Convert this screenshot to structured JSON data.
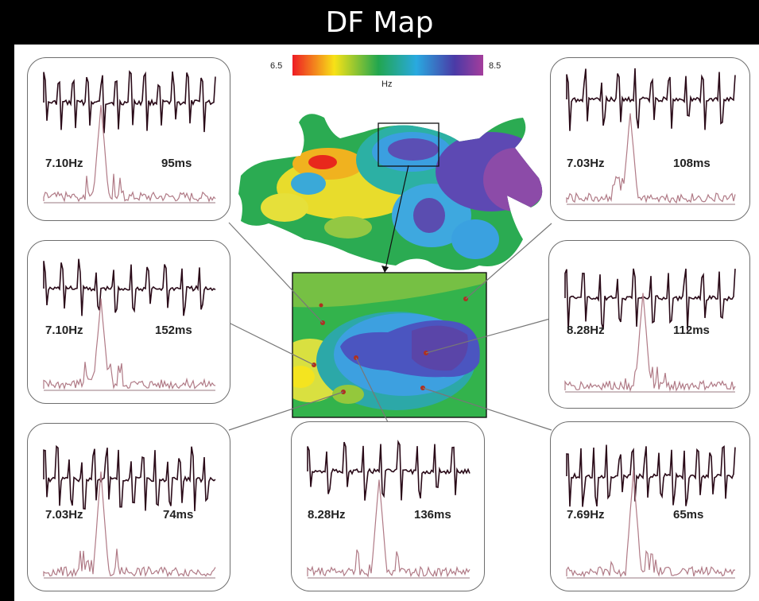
{
  "header": {
    "title": "DF Map"
  },
  "colorbar": {
    "min_label": "6.5",
    "max_label": "8.5",
    "unit": "Hz"
  },
  "cards": [
    {
      "id": "top-left",
      "freq": "7.10Hz",
      "cl": "95ms"
    },
    {
      "id": "mid-left",
      "freq": "7.10Hz",
      "cl": "152ms"
    },
    {
      "id": "bottom-left",
      "freq": "7.03Hz",
      "cl": "74ms"
    },
    {
      "id": "bottom-center",
      "freq": "8.28Hz",
      "cl": "136ms"
    },
    {
      "id": "top-right",
      "freq": "7.03Hz",
      "cl": "108ms"
    },
    {
      "id": "mid-right",
      "freq": "8.28Hz",
      "cl": "112ms"
    },
    {
      "id": "bottom-right",
      "freq": "7.69Hz",
      "cl": "65ms"
    }
  ]
}
